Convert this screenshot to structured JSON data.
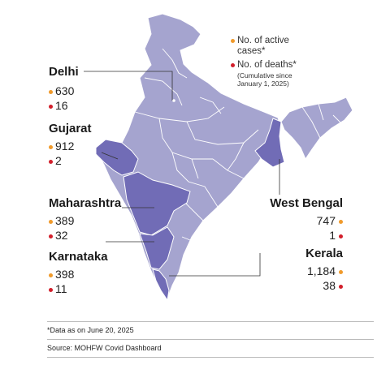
{
  "legend": {
    "active_line1": "No. of active",
    "active_line2": "cases*",
    "deaths_line": "No. of deaths*",
    "note_line1": "(Cumulative since",
    "note_line2": "January 1, 2025)"
  },
  "states": {
    "delhi": {
      "name": "Delhi",
      "active": "630",
      "deaths": "16"
    },
    "gujarat": {
      "name": "Gujarat",
      "active": "912",
      "deaths": "2"
    },
    "maharashtra": {
      "name": "Maharashtra",
      "active": "389",
      "deaths": "32"
    },
    "karnataka": {
      "name": "Karnataka",
      "active": "398",
      "deaths": "11"
    },
    "west_bengal": {
      "name": "West Bengal",
      "active": "747",
      "deaths": "1"
    },
    "kerala": {
      "name": "Kerala",
      "active": "1,184",
      "deaths": "38"
    }
  },
  "footer": {
    "note": "*Data as on June 20, 2025",
    "source": "Source: MOHFW Covid Dashboard"
  },
  "colors": {
    "map_fill": "#a5a4cf",
    "highlight_fill": "#716cb6",
    "border": "#ffffff",
    "active_dot": "#f09a2b",
    "death_dot": "#d21f2b"
  }
}
